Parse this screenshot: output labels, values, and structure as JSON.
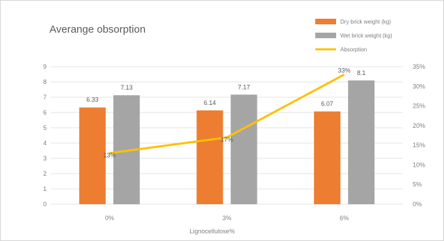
{
  "chart_data": {
    "type": "bar",
    "title": "Averange obsorption",
    "xlabel": "Lignocellulose%",
    "categories": [
      "0%",
      "3%",
      "6%"
    ],
    "series": [
      {
        "name": "Dry brick weight (kg)",
        "type": "bar",
        "axis": "left",
        "color": "#ED7D31",
        "values": [
          6.33,
          6.14,
          6.07
        ],
        "labels": [
          "6.33",
          "6.14",
          "6.07"
        ]
      },
      {
        "name": "Wet brick weight (kg)",
        "type": "bar",
        "axis": "left",
        "color": "#A5A5A5",
        "values": [
          7.13,
          7.17,
          8.1
        ],
        "labels": [
          "7.13",
          "7.17",
          "8.1"
        ]
      },
      {
        "name": "Absorption",
        "type": "line",
        "axis": "right",
        "color": "#FFC000",
        "values": [
          13,
          17,
          33
        ],
        "labels": [
          "13%",
          "17%",
          "33%"
        ]
      }
    ],
    "ylim": [
      0,
      9
    ],
    "y_ticks": [
      "0",
      "1",
      "2",
      "3",
      "4",
      "5",
      "6",
      "7",
      "8",
      "9"
    ],
    "y2lim": [
      0,
      35
    ],
    "y2_ticks": [
      "0%",
      "5%",
      "10%",
      "15%",
      "20%",
      "25%",
      "30%",
      "35%"
    ],
    "grid": true,
    "legend_position": "top-right"
  }
}
